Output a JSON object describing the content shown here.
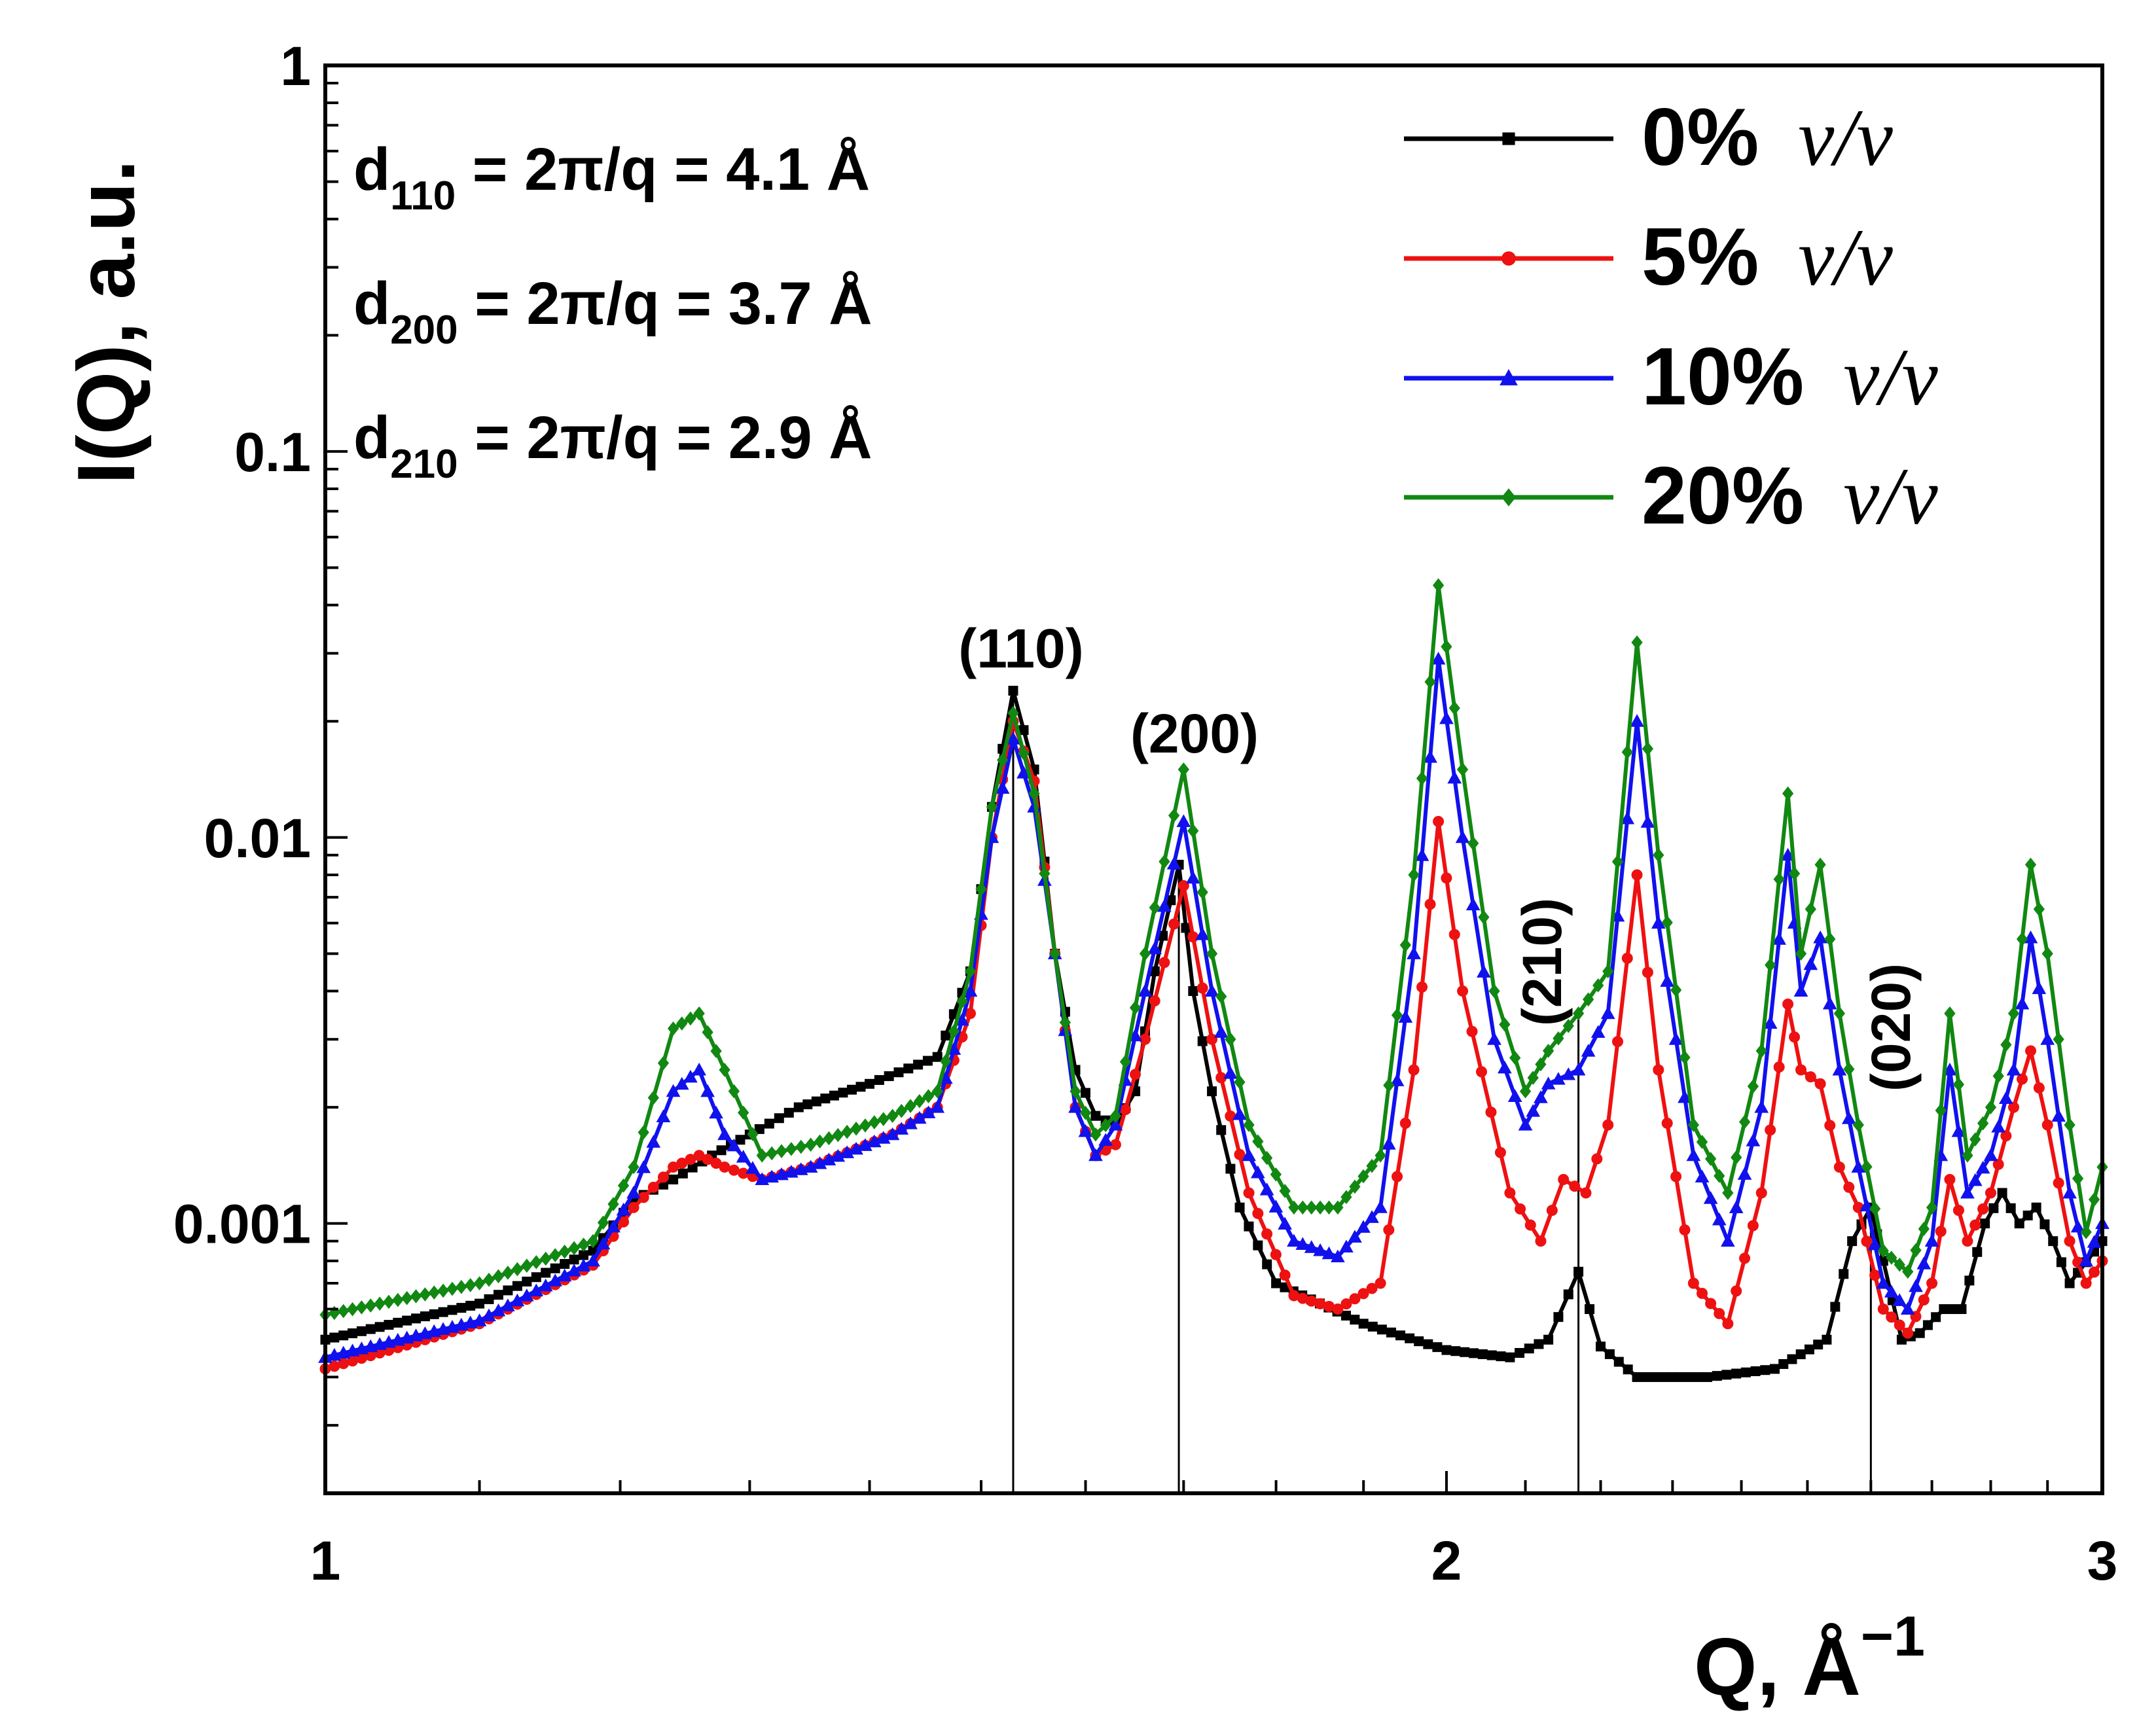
{
  "chart_data": {
    "type": "line",
    "title": "",
    "xlabel": "Q, Å",
    "xlabel_exponent": "−1",
    "ylabel": "I(Q), a.u.",
    "xscale": "log",
    "yscale": "log",
    "xlim": [
      1,
      3
    ],
    "ylim": [
      0.0002,
      1
    ],
    "xticks": [
      {
        "value": 1,
        "label": "1"
      },
      {
        "value": 2,
        "label": "2"
      },
      {
        "value": 3,
        "label": "3"
      }
    ],
    "yticks": [
      {
        "value": 1,
        "label": "1"
      },
      {
        "value": 0.1,
        "label": "0.1"
      },
      {
        "value": 0.01,
        "label": "0.01"
      },
      {
        "value": 0.001,
        "label": "0.001"
      }
    ],
    "info_lines": [
      {
        "label": "d",
        "sub": "110",
        "text": " = 2π/q = 4.1 Å"
      },
      {
        "label": "d",
        "sub": "200",
        "text": " = 2π/q = 3.7 Å"
      },
      {
        "label": "d",
        "sub": "210",
        "text": " = 2π/q = 2.9 Å"
      }
    ],
    "peak_lines": [
      {
        "label": "(110)",
        "q": 1.53,
        "ytop": 0.024,
        "label_rotated": false
      },
      {
        "label": "(200)",
        "q": 1.695,
        "ytop": 0.0085,
        "label_rotated": false
      },
      {
        "label": "(210)",
        "q": 2.17,
        "ytop": 0.0035,
        "label_rotated": true
      },
      {
        "label": "(020)",
        "q": 2.6,
        "ytop": 0.0011,
        "label_rotated": true
      }
    ],
    "legend_position": "top-right",
    "series": [
      {
        "name": "0%",
        "unit": "v/v",
        "color": "#000000",
        "marker": "square",
        "points": [
          [
            1.0,
            0.0005
          ],
          [
            1.1,
            0.00062
          ],
          [
            1.18,
            0.00085
          ],
          [
            1.21,
            0.00115
          ],
          [
            1.24,
            0.0013
          ],
          [
            1.27,
            0.0015
          ],
          [
            1.3,
            0.0017
          ],
          [
            1.34,
            0.002
          ],
          [
            1.4,
            0.0023
          ],
          [
            1.46,
            0.0027
          ],
          [
            1.49,
            0.0045
          ],
          [
            1.51,
            0.012
          ],
          [
            1.53,
            0.024
          ],
          [
            1.55,
            0.015
          ],
          [
            1.57,
            0.005
          ],
          [
            1.59,
            0.0025
          ],
          [
            1.61,
            0.0019
          ],
          [
            1.63,
            0.0018
          ],
          [
            1.65,
            0.0022
          ],
          [
            1.67,
            0.0045
          ],
          [
            1.695,
            0.0085
          ],
          [
            1.71,
            0.004
          ],
          [
            1.73,
            0.0022
          ],
          [
            1.76,
            0.0011
          ],
          [
            1.8,
            0.0007
          ],
          [
            1.9,
            0.00055
          ],
          [
            2.0,
            0.00047
          ],
          [
            2.08,
            0.00045
          ],
          [
            2.13,
            0.0005
          ],
          [
            2.17,
            0.00075
          ],
          [
            2.2,
            0.00048
          ],
          [
            2.25,
            0.0004
          ],
          [
            2.35,
            0.0004
          ],
          [
            2.45,
            0.00042
          ],
          [
            2.53,
            0.0005
          ],
          [
            2.57,
            0.0009
          ],
          [
            2.6,
            0.0011
          ],
          [
            2.62,
            0.0008
          ],
          [
            2.65,
            0.0005
          ],
          [
            2.68,
            0.00052
          ],
          [
            2.72,
            0.0006
          ],
          [
            2.75,
            0.0006
          ],
          [
            2.79,
            0.001
          ],
          [
            2.82,
            0.0012
          ],
          [
            2.85,
            0.001
          ],
          [
            2.88,
            0.0011
          ],
          [
            2.91,
            0.0009
          ],
          [
            2.94,
            0.0007
          ],
          [
            3.0,
            0.0009
          ]
        ]
      },
      {
        "name": "5%",
        "unit": "v/v",
        "color": "#ee1111",
        "marker": "circle",
        "points": [
          [
            1.0,
            0.00042
          ],
          [
            1.1,
            0.00055
          ],
          [
            1.18,
            0.00078
          ],
          [
            1.21,
            0.0011
          ],
          [
            1.24,
            0.0014
          ],
          [
            1.26,
            0.0015
          ],
          [
            1.28,
            0.0014
          ],
          [
            1.31,
            0.0013
          ],
          [
            1.35,
            0.0014
          ],
          [
            1.42,
            0.0017
          ],
          [
            1.46,
            0.002
          ],
          [
            1.49,
            0.0035
          ],
          [
            1.51,
            0.01
          ],
          [
            1.53,
            0.02
          ],
          [
            1.55,
            0.014
          ],
          [
            1.57,
            0.005
          ],
          [
            1.59,
            0.002
          ],
          [
            1.61,
            0.0015
          ],
          [
            1.63,
            0.0016
          ],
          [
            1.66,
            0.003
          ],
          [
            1.7,
            0.0075
          ],
          [
            1.73,
            0.003
          ],
          [
            1.77,
            0.0012
          ],
          [
            1.82,
            0.00065
          ],
          [
            1.87,
            0.0006
          ],
          [
            1.92,
            0.0007
          ],
          [
            1.96,
            0.0025
          ],
          [
            1.99,
            0.011
          ],
          [
            2.02,
            0.004
          ],
          [
            2.08,
            0.0012
          ],
          [
            2.12,
            0.0009
          ],
          [
            2.15,
            0.0013
          ],
          [
            2.18,
            0.0012
          ],
          [
            2.21,
            0.0018
          ],
          [
            2.25,
            0.008
          ],
          [
            2.28,
            0.0025
          ],
          [
            2.33,
            0.0007
          ],
          [
            2.38,
            0.00055
          ],
          [
            2.43,
            0.0012
          ],
          [
            2.47,
            0.0037
          ],
          [
            2.49,
            0.0025
          ],
          [
            2.52,
            0.0023
          ],
          [
            2.55,
            0.0014
          ],
          [
            2.58,
            0.0011
          ],
          [
            2.62,
            0.0006
          ],
          [
            2.66,
            0.00052
          ],
          [
            2.7,
            0.0007
          ],
          [
            2.73,
            0.0013
          ],
          [
            2.76,
            0.0009
          ],
          [
            2.8,
            0.0012
          ],
          [
            2.84,
            0.002
          ],
          [
            2.87,
            0.0028
          ],
          [
            2.9,
            0.0018
          ],
          [
            2.94,
            0.0009
          ],
          [
            2.97,
            0.0007
          ],
          [
            3.0,
            0.0008
          ]
        ]
      },
      {
        "name": "10%",
        "unit": "v/v",
        "color": "#1111ee",
        "marker": "triangle",
        "points": [
          [
            1.0,
            0.00045
          ],
          [
            1.1,
            0.00056
          ],
          [
            1.18,
            0.0008
          ],
          [
            1.21,
            0.0012
          ],
          [
            1.24,
            0.0022
          ],
          [
            1.26,
            0.0025
          ],
          [
            1.28,
            0.0017
          ],
          [
            1.31,
            0.0013
          ],
          [
            1.35,
            0.0014
          ],
          [
            1.42,
            0.0017
          ],
          [
            1.46,
            0.002
          ],
          [
            1.49,
            0.004
          ],
          [
            1.51,
            0.01
          ],
          [
            1.53,
            0.018
          ],
          [
            1.55,
            0.012
          ],
          [
            1.57,
            0.005
          ],
          [
            1.59,
            0.002
          ],
          [
            1.61,
            0.0015
          ],
          [
            1.63,
            0.0018
          ],
          [
            1.66,
            0.004
          ],
          [
            1.7,
            0.011
          ],
          [
            1.73,
            0.004
          ],
          [
            1.77,
            0.0015
          ],
          [
            1.82,
            0.0009
          ],
          [
            1.87,
            0.00082
          ],
          [
            1.92,
            0.0011
          ],
          [
            1.96,
            0.005
          ],
          [
            1.99,
            0.029
          ],
          [
            2.02,
            0.01
          ],
          [
            2.06,
            0.003
          ],
          [
            2.1,
            0.0018
          ],
          [
            2.13,
            0.0023
          ],
          [
            2.17,
            0.0025
          ],
          [
            2.21,
            0.0035
          ],
          [
            2.25,
            0.02
          ],
          [
            2.28,
            0.006
          ],
          [
            2.33,
            0.0015
          ],
          [
            2.38,
            0.0009
          ],
          [
            2.43,
            0.002
          ],
          [
            2.47,
            0.009
          ],
          [
            2.49,
            0.004
          ],
          [
            2.52,
            0.0055
          ],
          [
            2.55,
            0.0025
          ],
          [
            2.58,
            0.0014
          ],
          [
            2.62,
            0.0007
          ],
          [
            2.66,
            0.0006
          ],
          [
            2.7,
            0.0009
          ],
          [
            2.73,
            0.0025
          ],
          [
            2.76,
            0.0012
          ],
          [
            2.8,
            0.0015
          ],
          [
            2.84,
            0.0025
          ],
          [
            2.87,
            0.0055
          ],
          [
            2.9,
            0.003
          ],
          [
            2.94,
            0.0012
          ],
          [
            2.97,
            0.0008
          ],
          [
            3.0,
            0.001
          ]
        ]
      },
      {
        "name": "20%",
        "unit": "v/v",
        "color": "#118811",
        "marker": "diamond",
        "points": [
          [
            1.0,
            0.00058
          ],
          [
            1.1,
            0.0007
          ],
          [
            1.18,
            0.0009
          ],
          [
            1.21,
            0.0014
          ],
          [
            1.24,
            0.0032
          ],
          [
            1.26,
            0.0035
          ],
          [
            1.28,
            0.0025
          ],
          [
            1.31,
            0.0015
          ],
          [
            1.35,
            0.0016
          ],
          [
            1.42,
            0.0019
          ],
          [
            1.46,
            0.0022
          ],
          [
            1.49,
            0.0045
          ],
          [
            1.51,
            0.012
          ],
          [
            1.53,
            0.021
          ],
          [
            1.55,
            0.013
          ],
          [
            1.57,
            0.005
          ],
          [
            1.59,
            0.0022
          ],
          [
            1.61,
            0.0017
          ],
          [
            1.63,
            0.0019
          ],
          [
            1.66,
            0.005
          ],
          [
            1.7,
            0.015
          ],
          [
            1.73,
            0.005
          ],
          [
            1.77,
            0.0018
          ],
          [
            1.82,
            0.0011
          ],
          [
            1.87,
            0.0011
          ],
          [
            1.92,
            0.0015
          ],
          [
            1.96,
            0.008
          ],
          [
            1.99,
            0.045
          ],
          [
            2.02,
            0.015
          ],
          [
            2.06,
            0.004
          ],
          [
            2.1,
            0.0022
          ],
          [
            2.13,
            0.0028
          ],
          [
            2.17,
            0.0035
          ],
          [
            2.21,
            0.0045
          ],
          [
            2.25,
            0.032
          ],
          [
            2.28,
            0.009
          ],
          [
            2.33,
            0.0018
          ],
          [
            2.38,
            0.0012
          ],
          [
            2.43,
            0.0028
          ],
          [
            2.47,
            0.013
          ],
          [
            2.49,
            0.005
          ],
          [
            2.52,
            0.0085
          ],
          [
            2.55,
            0.0035
          ],
          [
            2.58,
            0.0018
          ],
          [
            2.62,
            0.00085
          ],
          [
            2.66,
            0.00075
          ],
          [
            2.7,
            0.0011
          ],
          [
            2.73,
            0.0035
          ],
          [
            2.76,
            0.0015
          ],
          [
            2.8,
            0.002
          ],
          [
            2.84,
            0.0035
          ],
          [
            2.87,
            0.0085
          ],
          [
            2.9,
            0.005
          ],
          [
            2.94,
            0.0018
          ],
          [
            2.97,
            0.00095
          ],
          [
            3.0,
            0.0014
          ]
        ]
      }
    ]
  }
}
